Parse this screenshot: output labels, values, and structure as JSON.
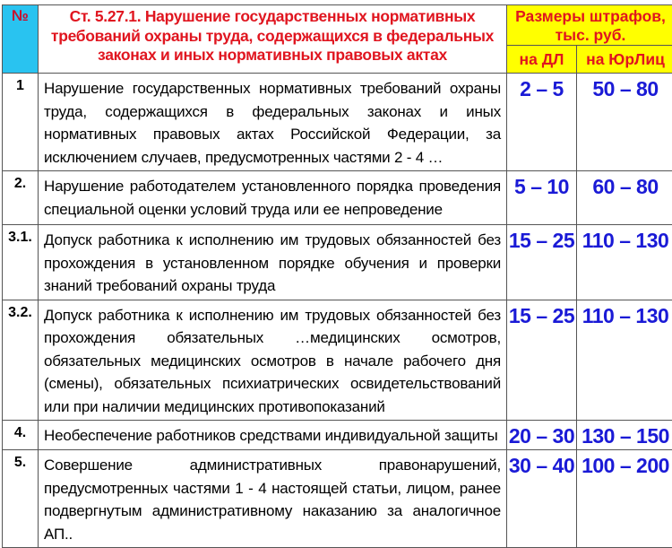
{
  "header": {
    "number_label": "№",
    "title": "Ст. 5.27.1. Нарушение государственных нормативных требований охраны труда, содержащихся в федеральных законах и иных нормативных правовых актах",
    "fines_label": "Размеры штрафов, тыс. руб.",
    "official_label": "на ДЛ",
    "legal_entity_label": "на ЮрЛиц"
  },
  "colors": {
    "number_header": "#29c3f0",
    "fines_header": "#ffff00",
    "title_text": "#e0151f",
    "fine_text": "#1a1ad6"
  },
  "rows": [
    {
      "number": "1",
      "description": "Нарушение государственных нормативных требований охраны труда, содержащихся в федеральных законах и иных нормативных правовых актах Российской Федерации, за исключением случаев, предусмотренных частями 2 - 4 …",
      "official": "2 – 5",
      "legal_entity": "50 – 80"
    },
    {
      "number": "2.",
      "description": "Нарушение работодателем установленного порядка проведения специальной оценки условий труда или ее непроведение",
      "official": "5 – 10",
      "legal_entity": "60 – 80"
    },
    {
      "number": "3.1.",
      "description": "Допуск работника к исполнению им трудовых обязанностей без прохождения в установленном порядке обучения и проверки знаний требований охраны труда",
      "official": "15 – 25",
      "legal_entity": "110 – 130"
    },
    {
      "number": "3.2.",
      "description": "Допуск работника к исполнению им трудовых обязанностей без прохождения обязательных …медицинских осмотров, обязательных медицинских осмотров в начале рабочего дня (смены), обязательных психиатрических освидетельствований или при наличии медицинских противопоказаний",
      "official": "15 – 25",
      "legal_entity": "110 – 130"
    },
    {
      "number": "4.",
      "description": "Необеспечение работников средствами индивидуальной защиты",
      "official": "20 – 30",
      "legal_entity": "130 – 150"
    },
    {
      "number": "5.",
      "description": "Совершение административных правонарушений, предусмотренных частями 1 - 4 настоящей статьи, лицом, ранее подвергнутым административному наказанию за аналогичное АП..",
      "official": "30 – 40",
      "legal_entity": "100 – 200"
    }
  ]
}
